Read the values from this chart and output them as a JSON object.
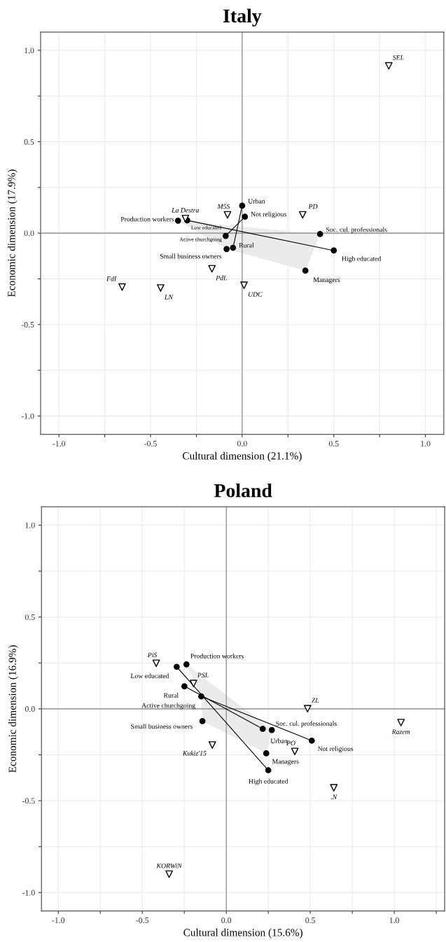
{
  "chart_data": [
    {
      "type": "scatter",
      "title": "Italy",
      "xlabel": "Cultural dimension (21.1%)",
      "ylabel": "Economic dimension (17.9%)",
      "xlim": [
        -1.1,
        1.1
      ],
      "ylim": [
        -1.1,
        1.1
      ],
      "xticks": [
        {
          "value": -1.0,
          "label": "-1.0"
        },
        {
          "value": -0.75,
          "label": null
        },
        {
          "value": -0.5,
          "label": "-0.5"
        },
        {
          "value": -0.25,
          "label": null
        },
        {
          "value": 0,
          "label": "0.0"
        },
        {
          "value": 0.25,
          "label": null
        },
        {
          "value": 0.5,
          "label": "0.5"
        },
        {
          "value": 0.75,
          "label": null
        },
        {
          "value": 1.0,
          "label": "1.0"
        }
      ],
      "yticks": [
        {
          "value": -1.0,
          "label": "-1.0"
        },
        {
          "value": -0.75,
          "label": null
        },
        {
          "value": -0.5,
          "label": "-0.5"
        },
        {
          "value": -0.25,
          "label": null
        },
        {
          "value": 0,
          "label": "0.0"
        },
        {
          "value": 0.25,
          "label": null
        },
        {
          "value": 0.5,
          "label": "0.5"
        },
        {
          "value": 0.75,
          "label": null
        },
        {
          "value": 1.0,
          "label": "1.0"
        }
      ],
      "grid": true,
      "series": [
        {
          "type": "line",
          "color": "#808080",
          "x": [
            0,
            0
          ],
          "values": [
            -1.1,
            1.1
          ]
        },
        {
          "type": "line",
          "color": "#808080",
          "x": [
            -1.1,
            1.1
          ],
          "values": [
            0,
            0
          ]
        },
        {
          "type": "area",
          "color": "#ebebeb",
          "x": [
            -0.35,
            0.425,
            0.345,
            -0.085
          ],
          "values": [
            0.068,
            -0.005,
            -0.205,
            -0.087
          ]
        },
        {
          "type": "line",
          "color": "#000000",
          "x": [
            -0.3,
            0.5
          ],
          "values": [
            0.07,
            -0.095
          ]
        },
        {
          "type": "line",
          "color": "#000000",
          "x": [
            -0.09,
            0.015
          ],
          "values": [
            -0.015,
            0.09
          ]
        },
        {
          "type": "line",
          "color": "#000000",
          "x": [
            0.0,
            -0.05
          ],
          "values": [
            0.15,
            -0.08
          ]
        },
        {
          "marker": "circle",
          "color": "#000000",
          "x": [
            -0.35,
            -0.3,
            -0.09,
            0.0,
            0.015,
            -0.05,
            -0.085,
            0.425,
            0.5,
            0.345
          ],
          "values": [
            0.068,
            0.07,
            -0.015,
            0.15,
            0.09,
            -0.08,
            -0.087,
            -0.005,
            -0.095,
            -0.205
          ]
        },
        {
          "marker": "triangle",
          "color": "#000000",
          "x": [
            0.8,
            -0.31,
            -0.08,
            0.33,
            -0.165,
            0.01,
            -0.445,
            -0.655
          ],
          "values": [
            0.915,
            0.08,
            0.1,
            0.1,
            -0.195,
            -0.285,
            -0.3,
            -0.295
          ]
        }
      ],
      "annotations": [
        {
          "text": "Production workers",
          "x": -0.35,
          "y": 0.068
        },
        {
          "text": "Low educated",
          "x": -0.3,
          "y": 0.07
        },
        {
          "text": "Active churchgoing",
          "x": -0.09,
          "y": -0.015
        },
        {
          "text": "Urban",
          "x": 0.0,
          "y": 0.15
        },
        {
          "text": "Not religious",
          "x": 0.015,
          "y": 0.09
        },
        {
          "text": "Rural",
          "x": -0.05,
          "y": -0.08
        },
        {
          "text": "Small business owners",
          "x": -0.085,
          "y": -0.087
        },
        {
          "text": "Soc. cul. professionals",
          "x": 0.425,
          "y": -0.005
        },
        {
          "text": "High educated",
          "x": 0.5,
          "y": -0.095
        },
        {
          "text": "Managers",
          "x": 0.345,
          "y": -0.205
        },
        {
          "text": "SEL",
          "x": 0.8,
          "y": 0.915
        },
        {
          "text": "La Destra",
          "x": -0.31,
          "y": 0.08
        },
        {
          "text": "M5S",
          "x": -0.08,
          "y": 0.1
        },
        {
          "text": "PD",
          "x": 0.33,
          "y": 0.1
        },
        {
          "text": "PdL",
          "x": -0.165,
          "y": -0.195
        },
        {
          "text": "UDC",
          "x": 0.01,
          "y": -0.285
        },
        {
          "text": "LN",
          "x": -0.445,
          "y": -0.3
        },
        {
          "text": "FdI",
          "x": -0.655,
          "y": -0.295
        }
      ]
    },
    {
      "type": "scatter",
      "title": "Poland",
      "xlabel": "Cultural dimension (15.6%)",
      "ylabel": "Economic dimension (16.9%)",
      "xlim": [
        -1.1,
        1.3
      ],
      "ylim": [
        -1.1,
        1.1
      ],
      "xticks": [
        {
          "value": -1.0,
          "label": "-1.0"
        },
        {
          "value": -0.75,
          "label": null
        },
        {
          "value": -0.5,
          "label": "-0.5"
        },
        {
          "value": -0.25,
          "label": null
        },
        {
          "value": 0,
          "label": "0.0"
        },
        {
          "value": 0.25,
          "label": null
        },
        {
          "value": 0.5,
          "label": "0.5"
        },
        {
          "value": 0.75,
          "label": null
        },
        {
          "value": 1.0,
          "label": "1.0"
        },
        {
          "value": 1.25,
          "label": null
        }
      ],
      "yticks": [
        {
          "value": -1.0,
          "label": "-1.0"
        },
        {
          "value": -0.75,
          "label": null
        },
        {
          "value": -0.5,
          "label": "-0.5"
        },
        {
          "value": -0.25,
          "label": null
        },
        {
          "value": 0,
          "label": "0.0"
        },
        {
          "value": 0.25,
          "label": null
        },
        {
          "value": 0.5,
          "label": "0.5"
        },
        {
          "value": 0.75,
          "label": null
        },
        {
          "value": 1.0,
          "label": "1.0"
        }
      ],
      "grid": true,
      "series": [
        {
          "type": "line",
          "color": "#808080",
          "x": [
            0,
            0
          ],
          "values": [
            -1.1,
            1.1
          ]
        },
        {
          "type": "line",
          "color": "#808080",
          "x": [
            -1.1,
            1.3
          ],
          "values": [
            0,
            0
          ]
        },
        {
          "type": "area",
          "color": "#ebebeb",
          "x": [
            -0.237,
            0.271,
            0.238,
            -0.142,
            -0.149
          ],
          "values": [
            0.242,
            -0.115,
            -0.242,
            -0.067,
            0.068
          ]
        },
        {
          "type": "line",
          "color": "#000000",
          "x": [
            -0.295,
            0.25
          ],
          "values": [
            0.229,
            -0.334
          ]
        },
        {
          "type": "line",
          "color": "#000000",
          "x": [
            -0.249,
            0.217
          ],
          "values": [
            0.123,
            -0.109
          ]
        },
        {
          "type": "line",
          "color": "#000000",
          "x": [
            -0.149,
            0.509
          ],
          "values": [
            0.068,
            -0.173
          ]
        },
        {
          "marker": "circle",
          "color": "#000000",
          "x": [
            -0.237,
            -0.295,
            -0.249,
            -0.149,
            -0.142,
            0.217,
            0.271,
            0.509,
            0.238,
            0.25
          ],
          "values": [
            0.242,
            0.229,
            0.123,
            0.068,
            -0.067,
            -0.109,
            -0.115,
            -0.173,
            -0.242,
            -0.334
          ]
        },
        {
          "marker": "triangle",
          "color": "#000000",
          "x": [
            -0.417,
            -0.195,
            0.484,
            -0.083,
            0.408,
            1.04,
            0.64,
            -0.34
          ],
          "values": [
            0.248,
            0.138,
            0.001,
            -0.197,
            -0.232,
            -0.075,
            -0.43,
            -0.9
          ]
        }
      ],
      "annotations": [
        {
          "text": "Production workers",
          "x": -0.237,
          "y": 0.242
        },
        {
          "text": "Low educated",
          "x": -0.295,
          "y": 0.229
        },
        {
          "text": "Rural",
          "x": -0.249,
          "y": 0.123
        },
        {
          "text": "Active churchgoing",
          "x": -0.149,
          "y": 0.068
        },
        {
          "text": "Small business owners",
          "x": -0.142,
          "y": -0.067
        },
        {
          "text": "Urban",
          "x": 0.217,
          "y": -0.109
        },
        {
          "text": "Soc. cul. professionals",
          "x": 0.271,
          "y": -0.115
        },
        {
          "text": "Not religious",
          "x": 0.509,
          "y": -0.173
        },
        {
          "text": "Managers",
          "x": 0.238,
          "y": -0.242
        },
        {
          "text": "High educated",
          "x": 0.25,
          "y": -0.334
        },
        {
          "text": "PiS",
          "x": -0.417,
          "y": 0.248
        },
        {
          "text": "PSL",
          "x": -0.195,
          "y": 0.138
        },
        {
          "text": "ZL",
          "x": 0.484,
          "y": 0.001
        },
        {
          "text": "Kukiz'15",
          "x": -0.083,
          "y": -0.197
        },
        {
          "text": "PO",
          "x": 0.408,
          "y": -0.232
        },
        {
          "text": "Razem",
          "x": 1.04,
          "y": -0.075
        },
        {
          "text": ".N",
          "x": 0.64,
          "y": -0.43
        },
        {
          "text": "KORWiN",
          "x": -0.34,
          "y": -0.9
        }
      ]
    }
  ]
}
